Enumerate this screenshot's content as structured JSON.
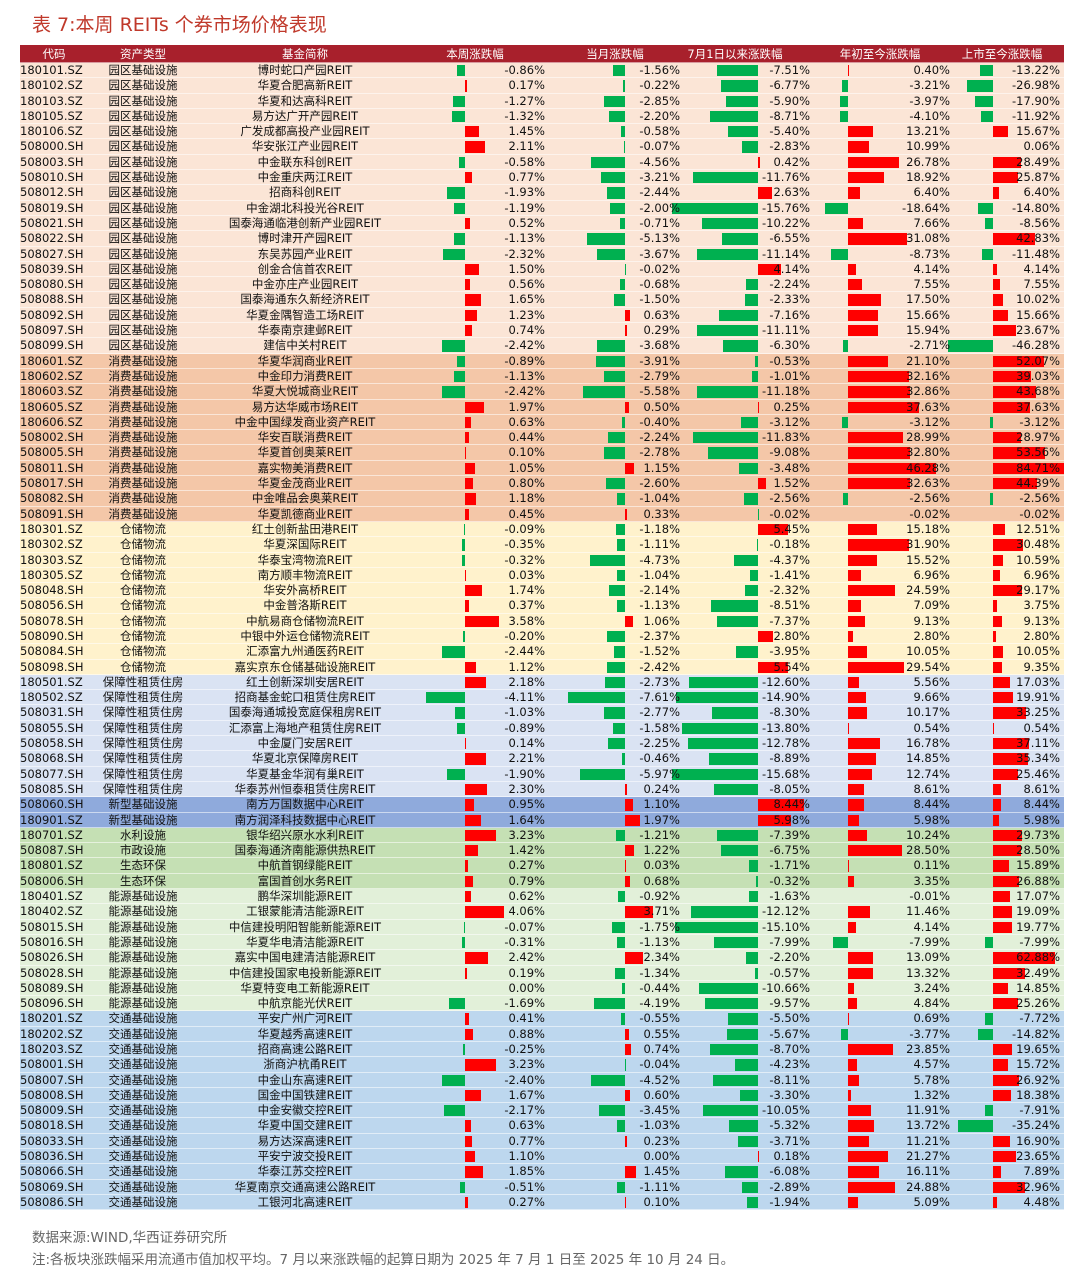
{
  "title": "表 7:本周 REITs 个券市场价格表现",
  "colors": {
    "up": "#ff0000",
    "down": "#00b050",
    "header_bg": "#a8202c",
    "title": "#c0392b"
  },
  "headers": [
    "代码",
    "资产类型",
    "基金简称",
    "本周涨跌幅",
    "当月涨跌幅",
    "7月1日以来涨跌幅",
    "年初至今涨跌幅",
    "上市至今涨跌幅"
  ],
  "sector_colors": {
    "园区基础设施": "#fbe5d6",
    "消费基础设施": "#f4c7a8",
    "仓储物流": "#fff2cc",
    "保障性租赁住房": "#dae3f3",
    "新型基础设施": "#8faadc",
    "水利设施": "#c5e0b4",
    "市政设施": "#c5e0b4",
    "生态环保": "#c5e0b4",
    "能源基础设施": "#e2f0d9",
    "交通基础设施": "#bdd7ee"
  },
  "rows": [
    [
      "180101.SZ",
      "园区基础设施",
      "博时蛇口产园REIT",
      -0.86,
      -1.56,
      -7.51,
      0.4,
      -13.22
    ],
    [
      "180102.SZ",
      "园区基础设施",
      "华夏合肥高新REIT",
      0.17,
      -0.22,
      -6.77,
      -3.21,
      -26.98
    ],
    [
      "180103.SZ",
      "园区基础设施",
      "华夏和达高科REIT",
      -1.27,
      -2.85,
      -5.9,
      -3.97,
      -17.9
    ],
    [
      "180105.SZ",
      "园区基础设施",
      "易方达广开产园REIT",
      -1.32,
      -2.2,
      -8.71,
      -4.1,
      -11.92
    ],
    [
      "180106.SZ",
      "园区基础设施",
      "广发成都高投产业园REIT",
      1.45,
      -0.58,
      -5.4,
      13.21,
      15.67
    ],
    [
      "508000.SH",
      "园区基础设施",
      "华安张江产业园REIT",
      2.11,
      -0.07,
      -2.83,
      10.99,
      0.06
    ],
    [
      "508003.SH",
      "园区基础设施",
      "中金联东科创REIT",
      -0.58,
      -4.56,
      0.42,
      26.78,
      28.49
    ],
    [
      "508010.SH",
      "园区基础设施",
      "中金重庆两江REIT",
      0.77,
      -3.21,
      -11.76,
      18.92,
      25.87
    ],
    [
      "508012.SH",
      "园区基础设施",
      "招商科创REIT",
      -1.93,
      -2.44,
      2.63,
      6.4,
      6.4
    ],
    [
      "508019.SH",
      "园区基础设施",
      "中金湖北科投光谷REIT",
      -1.19,
      -2.0,
      -15.76,
      -18.64,
      -14.8
    ],
    [
      "508021.SH",
      "园区基础设施",
      "国泰海通临港创新产业园REIT",
      0.52,
      -0.71,
      -10.22,
      7.66,
      -8.56
    ],
    [
      "508022.SH",
      "园区基础设施",
      "博时津开产园REIT",
      -1.13,
      -5.13,
      -6.55,
      31.08,
      42.83
    ],
    [
      "508027.SH",
      "园区基础设施",
      "东吴苏园产业REIT",
      -2.32,
      -3.67,
      -11.14,
      -8.73,
      -11.48
    ],
    [
      "508039.SH",
      "园区基础设施",
      "创金合信首农REIT",
      1.5,
      -0.02,
      4.14,
      4.14,
      4.14
    ],
    [
      "508080.SH",
      "园区基础设施",
      "中金亦庄产业园REIT",
      0.56,
      -0.68,
      -2.24,
      7.55,
      7.55
    ],
    [
      "508088.SH",
      "园区基础设施",
      "国泰海通东久新经济REIT",
      1.65,
      -1.5,
      -2.33,
      17.5,
      10.02
    ],
    [
      "508092.SH",
      "园区基础设施",
      "华夏金隅智造工场REIT",
      1.23,
      0.63,
      -7.16,
      15.66,
      15.66
    ],
    [
      "508097.SH",
      "园区基础设施",
      "华泰南京建邺REIT",
      0.74,
      0.29,
      -11.11,
      15.94,
      23.67
    ],
    [
      "508099.SH",
      "园区基础设施",
      "建信中关村REIT",
      -2.42,
      -3.68,
      -6.3,
      -2.71,
      -46.28
    ],
    [
      "180601.SZ",
      "消费基础设施",
      "华夏华润商业REIT",
      -0.89,
      -3.91,
      -0.53,
      21.1,
      52.07
    ],
    [
      "180602.SZ",
      "消费基础设施",
      "中金印力消费REIT",
      -1.13,
      -2.79,
      -1.01,
      32.16,
      39.03
    ],
    [
      "180603.SZ",
      "消费基础设施",
      "华夏大悦城商业REIT",
      -2.42,
      -5.58,
      -11.18,
      32.86,
      43.68
    ],
    [
      "180605.SZ",
      "消费基础设施",
      "易方达华威市场REIT",
      1.97,
      0.5,
      0.25,
      37.63,
      37.63
    ],
    [
      "180606.SZ",
      "消费基础设施",
      "中金中国绿发商业资产REIT",
      0.63,
      -0.4,
      -3.12,
      -3.12,
      -3.12
    ],
    [
      "508002.SH",
      "消费基础设施",
      "华安百联消费REIT",
      0.44,
      -2.24,
      -11.83,
      28.99,
      28.97
    ],
    [
      "508005.SH",
      "消费基础设施",
      "华夏首创奥莱REIT",
      0.1,
      -2.78,
      -9.08,
      32.8,
      53.56
    ],
    [
      "508011.SH",
      "消费基础设施",
      "嘉实物美消费REIT",
      1.05,
      1.15,
      -3.48,
      46.28,
      84.71
    ],
    [
      "508017.SH",
      "消费基础设施",
      "华夏金茂商业REIT",
      0.8,
      -2.6,
      1.52,
      32.63,
      44.39
    ],
    [
      "508082.SH",
      "消费基础设施",
      "中金唯品会奥莱REIT",
      1.18,
      -1.04,
      -2.56,
      -2.56,
      -2.56
    ],
    [
      "508091.SH",
      "消费基础设施",
      "华夏凯德商业REIT",
      0.45,
      0.33,
      -0.02,
      -0.02,
      -0.02
    ],
    [
      "180301.SZ",
      "仓储物流",
      "红土创新盐田港REIT",
      -0.09,
      -1.18,
      5.45,
      15.18,
      12.51
    ],
    [
      "180302.SZ",
      "仓储物流",
      "华夏深国际REIT",
      -0.35,
      -1.11,
      -0.18,
      31.9,
      30.48
    ],
    [
      "180303.SZ",
      "仓储物流",
      "华泰宝湾物流REIT",
      -0.32,
      -4.73,
      -4.37,
      15.52,
      10.59
    ],
    [
      "180305.SZ",
      "仓储物流",
      "南方顺丰物流REIT",
      0.03,
      -1.04,
      -1.41,
      6.96,
      6.96
    ],
    [
      "508048.SH",
      "仓储物流",
      "华安外高桥REIT",
      1.74,
      -2.14,
      -2.32,
      24.59,
      29.17
    ],
    [
      "508056.SH",
      "仓储物流",
      "中金普洛斯REIT",
      0.37,
      -1.13,
      -8.51,
      7.09,
      3.75
    ],
    [
      "508078.SH",
      "仓储物流",
      "中航易商仓储物流REIT",
      3.58,
      1.06,
      -7.37,
      9.13,
      9.13
    ],
    [
      "508090.SH",
      "仓储物流",
      "中银中外运仓储物流REIT",
      -0.2,
      -2.37,
      2.8,
      2.8,
      2.8
    ],
    [
      "508084.SH",
      "仓储物流",
      "汇添富九州通医药REIT",
      -2.44,
      -1.52,
      -3.95,
      10.05,
      10.05
    ],
    [
      "508098.SH",
      "仓储物流",
      "嘉实京东仓储基础设施REIT",
      1.12,
      -2.42,
      5.54,
      29.54,
      9.35
    ],
    [
      "180501.SZ",
      "保障性租赁住房",
      "红土创新深圳安居REIT",
      2.18,
      -2.73,
      -12.6,
      5.56,
      17.03
    ],
    [
      "180502.SZ",
      "保障性租赁住房",
      "招商基金蛇口租赁住房REIT",
      -4.11,
      -7.61,
      -14.9,
      9.66,
      19.91
    ],
    [
      "508031.SH",
      "保障性租赁住房",
      "国泰海通城投宽庭保租房REIT",
      -1.03,
      -2.77,
      -8.3,
      10.17,
      33.25
    ],
    [
      "508055.SH",
      "保障性租赁住房",
      "汇添富上海地产租赁住房REIT",
      -0.89,
      -1.58,
      -13.8,
      0.54,
      0.54
    ],
    [
      "508058.SH",
      "保障性租赁住房",
      "中金厦门安居REIT",
      0.14,
      -2.25,
      -12.78,
      16.78,
      37.11
    ],
    [
      "508068.SH",
      "保障性租赁住房",
      "华夏北京保障房REIT",
      2.21,
      -0.46,
      -8.89,
      14.85,
      35.34
    ],
    [
      "508077.SH",
      "保障性租赁住房",
      "华夏基金华润有巢REIT",
      -1.9,
      -5.97,
      -15.68,
      12.74,
      25.46
    ],
    [
      "508085.SH",
      "保障性租赁住房",
      "华泰苏州恒泰租赁住房REIT",
      2.3,
      0.24,
      -8.05,
      8.61,
      8.61
    ],
    [
      "508060.SH",
      "新型基础设施",
      "南方万国数据中心REIT",
      0.95,
      1.1,
      8.44,
      8.44,
      8.44
    ],
    [
      "180901.SZ",
      "新型基础设施",
      "南方润泽科技数据中心REIT",
      1.64,
      1.97,
      5.98,
      5.98,
      5.98
    ],
    [
      "180701.SZ",
      "水利设施",
      "银华绍兴原水水利REIT",
      3.23,
      -1.21,
      -7.39,
      10.24,
      29.73
    ],
    [
      "508087.SH",
      "市政设施",
      "国泰海通济南能源供热REIT",
      1.42,
      1.22,
      -6.75,
      28.5,
      28.5
    ],
    [
      "180801.SZ",
      "生态环保",
      "中航首钢绿能REIT",
      0.27,
      0.03,
      -1.71,
      0.11,
      15.89
    ],
    [
      "508006.SH",
      "生态环保",
      "富国首创水务REIT",
      0.79,
      0.68,
      -0.32,
      3.35,
      26.88
    ],
    [
      "180401.SZ",
      "能源基础设施",
      "鹏华深圳能源REIT",
      0.62,
      -0.92,
      -1.63,
      -0.01,
      17.07
    ],
    [
      "180402.SZ",
      "能源基础设施",
      "工银蒙能清洁能源REIT",
      4.06,
      3.71,
      -12.12,
      11.46,
      19.09
    ],
    [
      "508015.SH",
      "能源基础设施",
      "中信建投明阳智能新能源REIT",
      -0.07,
      -1.75,
      -15.1,
      4.14,
      19.77
    ],
    [
      "508016.SH",
      "能源基础设施",
      "华夏华电清洁能源REIT",
      -0.31,
      -1.13,
      -7.99,
      -7.99,
      -7.99
    ],
    [
      "508026.SH",
      "能源基础设施",
      "嘉实中国电建清洁能源REIT",
      2.42,
      2.34,
      -2.2,
      13.09,
      62.88
    ],
    [
      "508028.SH",
      "能源基础设施",
      "中信建投国家电投新能源REIT",
      0.19,
      -1.34,
      -0.57,
      13.32,
      32.49
    ],
    [
      "508089.SH",
      "能源基础设施",
      "华夏特变电工新能源REIT",
      0.0,
      -0.44,
      -10.66,
      3.24,
      14.85
    ],
    [
      "508096.SH",
      "能源基础设施",
      "中航京能光伏REIT",
      -1.69,
      -4.19,
      -9.57,
      4.84,
      25.26
    ],
    [
      "180201.SZ",
      "交通基础设施",
      "平安广州广河REIT",
      0.41,
      -0.55,
      -5.5,
      0.69,
      -7.72
    ],
    [
      "180202.SZ",
      "交通基础设施",
      "华夏越秀高速REIT",
      0.88,
      0.55,
      -5.67,
      -3.77,
      -14.82
    ],
    [
      "180203.SZ",
      "交通基础设施",
      "招商高速公路REIT",
      -0.25,
      0.74,
      -8.7,
      23.85,
      19.65
    ],
    [
      "508001.SH",
      "交通基础设施",
      "浙商沪杭甬REIT",
      3.23,
      -0.04,
      -4.23,
      4.57,
      15.72
    ],
    [
      "508007.SH",
      "交通基础设施",
      "中金山东高速REIT",
      -2.4,
      -4.52,
      -8.11,
      5.78,
      26.92
    ],
    [
      "508008.SH",
      "交通基础设施",
      "国金中国铁建REIT",
      1.67,
      0.6,
      -3.3,
      1.32,
      18.38
    ],
    [
      "508009.SH",
      "交通基础设施",
      "中金安徽交控REIT",
      -2.17,
      -3.45,
      -10.05,
      11.91,
      -7.91
    ],
    [
      "508018.SH",
      "交通基础设施",
      "华夏中国交建REIT",
      0.63,
      -1.03,
      -5.32,
      13.72,
      -35.24
    ],
    [
      "508033.SH",
      "交通基础设施",
      "易方达深高速REIT",
      0.77,
      0.23,
      -3.71,
      11.21,
      16.9
    ],
    [
      "508036.SH",
      "交通基础设施",
      "平安宁波交投REIT",
      1.1,
      0.0,
      0.18,
      21.27,
      23.65
    ],
    [
      "508066.SH",
      "交通基础设施",
      "华泰江苏交控REIT",
      1.85,
      1.45,
      -6.08,
      16.11,
      7.89
    ],
    [
      "508069.SH",
      "交通基础设施",
      "华夏南京交通高速公路REIT",
      -0.51,
      -1.11,
      -2.89,
      24.88,
      32.96
    ],
    [
      "508086.SH",
      "交通基础设施",
      "工银河北高速REIT",
      0.27,
      0.1,
      -1.94,
      5.09,
      4.48
    ]
  ],
  "footer_source": "数据来源:WIND,华西证券研究所",
  "footer_note": "注:各板块涨跌幅采用流通市值加权平均。7 月以来涨跌幅的起算日期为 2025 年 7 月 1 日至 2025 年 10 月 24 日。"
}
